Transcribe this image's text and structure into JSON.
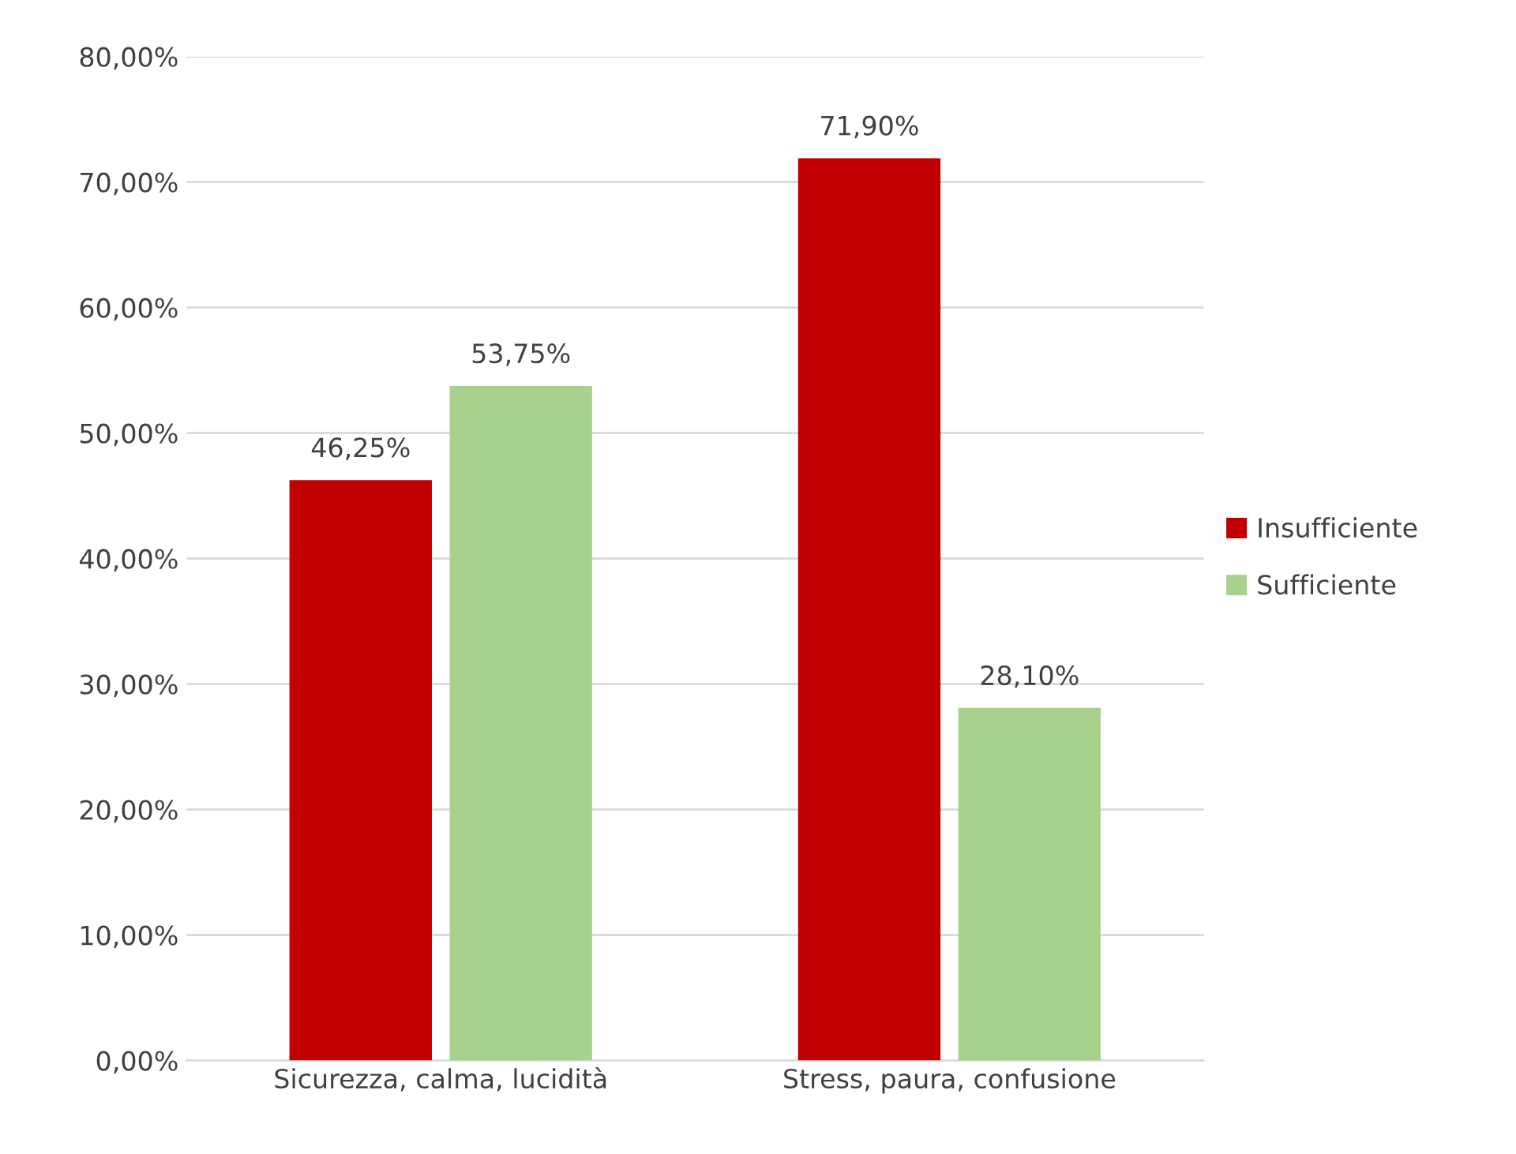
{
  "chart_data": {
    "type": "bar",
    "categories": [
      "Sicurezza, calma, lucidità",
      "Stress, paura, confusione"
    ],
    "series": [
      {
        "name": "Insufficiente",
        "color": "#c00000",
        "values": [
          46.25,
          71.9
        ],
        "value_labels": [
          "46,25%",
          "71,90%"
        ]
      },
      {
        "name": "Sufficiente",
        "color": "#a9d18e",
        "values": [
          53.75,
          28.1
        ],
        "value_labels": [
          "53,75%",
          "28,10%"
        ]
      }
    ],
    "ylim": [
      0,
      80
    ],
    "yticks": [
      {
        "value": 0,
        "label": "0,00%"
      },
      {
        "value": 10,
        "label": "10,00%"
      },
      {
        "value": 20,
        "label": "20,00%"
      },
      {
        "value": 30,
        "label": "30,00%"
      },
      {
        "value": 40,
        "label": "40,00%"
      },
      {
        "value": 50,
        "label": "50,00%"
      },
      {
        "value": 60,
        "label": "60,00%"
      },
      {
        "value": 70,
        "label": "70,00%"
      },
      {
        "value": 80,
        "label": "80,00%"
      }
    ],
    "grid": "y",
    "legend": "right"
  }
}
